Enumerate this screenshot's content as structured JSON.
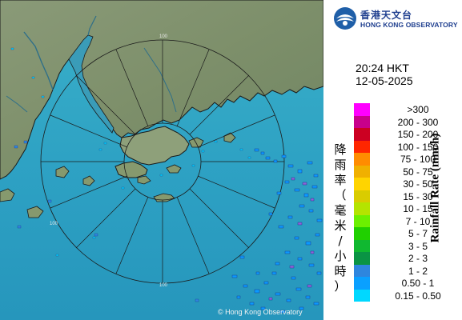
{
  "header": {
    "org_name_cn": "香港天文台",
    "org_name_en": "HONG KONG OBSERVATORY"
  },
  "timestamp": {
    "time": "20:24 HKT",
    "date": "12-05-2025"
  },
  "legend": {
    "title_cn": [
      "降",
      "雨",
      "率",
      "（",
      "毫",
      "米",
      "/",
      "小",
      "時",
      "）"
    ],
    "title_en": "Rainfall Rate (mm/h)",
    "items": [
      {
        "label": ">300",
        "color": "#ff00ff"
      },
      {
        "label": "200 - 300",
        "color": "#c8008c"
      },
      {
        "label": "150 - 200",
        "color": "#cc0022"
      },
      {
        "label": "100 - 150",
        "color": "#ff2600"
      },
      {
        "label": "75 - 100",
        "color": "#ff8c00"
      },
      {
        "label": "50 - 75",
        "color": "#f0b000"
      },
      {
        "label": "30 - 50",
        "color": "#ffd400"
      },
      {
        "label": "15 - 30",
        "color": "#d9cc00"
      },
      {
        "label": "10 - 15",
        "color": "#b4e400"
      },
      {
        "label": "7 - 10",
        "color": "#6cf000"
      },
      {
        "label": "5 - 7",
        "color": "#20d000"
      },
      {
        "label": "3 - 5",
        "color": "#10b830"
      },
      {
        "label": "2 - 3",
        "color": "#0a9444"
      },
      {
        "label": "1 - 2",
        "color": "#2e86de"
      },
      {
        "label": "0.50 - 1",
        "color": "#0aa0ff"
      },
      {
        "label": "0.15 - 0.50",
        "color": "#00d8ff"
      }
    ]
  },
  "map": {
    "range_label": "100",
    "copyright": "© Hong Kong Observatory"
  }
}
